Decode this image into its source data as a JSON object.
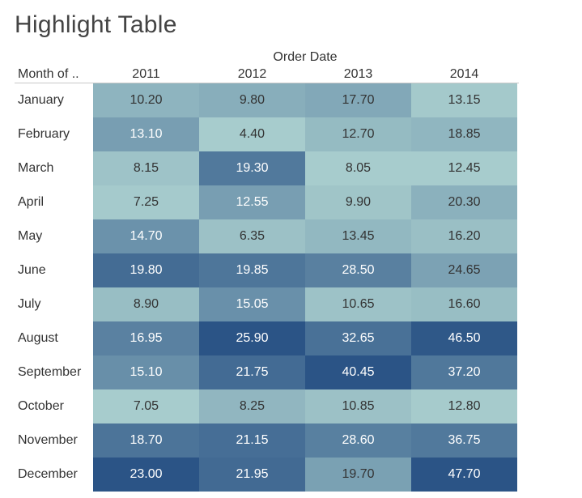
{
  "title": "Highlight Table",
  "chart_data": {
    "type": "heatmap",
    "title": "Highlight Table",
    "column_group_label": "Order Date",
    "row_field_label": "Month of ..",
    "columns": [
      "2011",
      "2012",
      "2013",
      "2014"
    ],
    "rows": [
      "January",
      "February",
      "March",
      "April",
      "May",
      "June",
      "July",
      "August",
      "September",
      "October",
      "November",
      "December"
    ],
    "values": [
      [
        "10.20",
        "9.80",
        "17.70",
        "13.15"
      ],
      [
        "13.10",
        "4.40",
        "12.70",
        "18.85"
      ],
      [
        "8.15",
        "19.30",
        "8.05",
        "12.45"
      ],
      [
        "7.25",
        "12.55",
        "9.90",
        "20.30"
      ],
      [
        "14.70",
        "6.35",
        "13.45",
        "16.20"
      ],
      [
        "19.80",
        "19.85",
        "28.50",
        "24.65"
      ],
      [
        "8.90",
        "15.05",
        "10.65",
        "16.60"
      ],
      [
        "16.95",
        "25.90",
        "32.65",
        "46.50"
      ],
      [
        "15.10",
        "21.75",
        "40.45",
        "37.20"
      ],
      [
        "7.05",
        "8.25",
        "10.85",
        "12.80"
      ],
      [
        "18.70",
        "21.15",
        "28.60",
        "36.75"
      ],
      [
        "23.00",
        "21.95",
        "19.70",
        "47.70"
      ]
    ],
    "color_scale": {
      "scope": "per-column",
      "low": "#c2e6dc",
      "high": "#2b5486"
    }
  }
}
